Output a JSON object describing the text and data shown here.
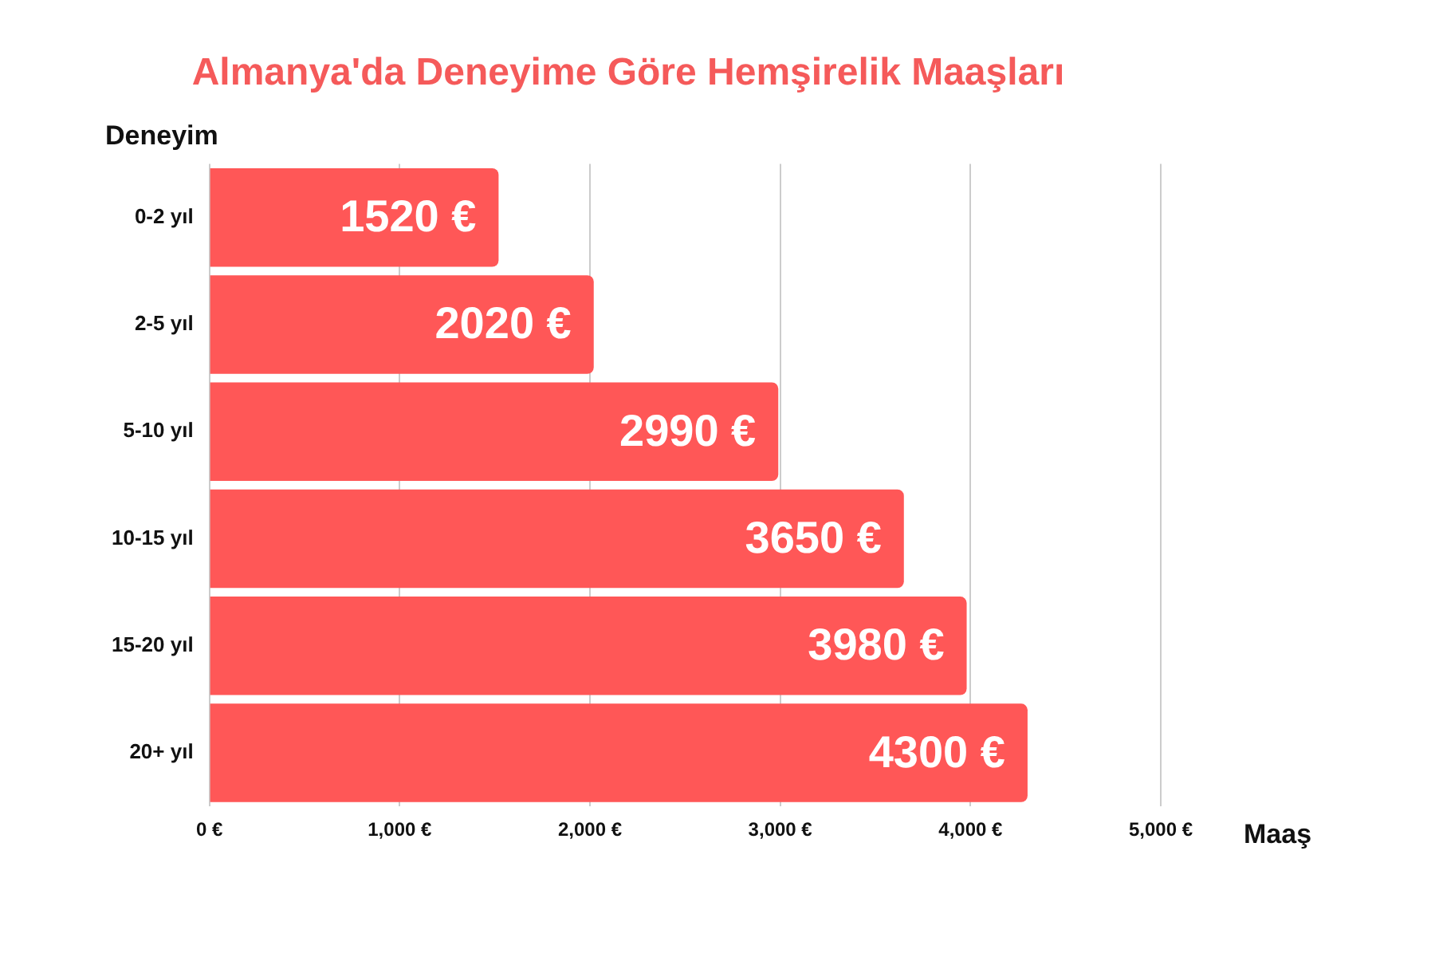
{
  "chart_data": {
    "type": "bar",
    "orientation": "horizontal",
    "title": "Almanya'da Deneyime Göre Hemşirelik Maaşları",
    "xlabel": "Maaş",
    "ylabel": "Deneyim",
    "categories": [
      "0-2 yıl",
      "2-5 yıl",
      "5-10 yıl",
      "10-15 yıl",
      "15-20 yıl",
      "20+ yıl"
    ],
    "values": [
      1520,
      2020,
      2990,
      3650,
      3980,
      4300
    ],
    "value_labels": [
      "1520 €",
      "2020 €",
      "2990 €",
      "3650 €",
      "3980 €",
      "4300 €"
    ],
    "color": "#ff5757",
    "xlim": [
      0,
      5000
    ],
    "xticks": [
      {
        "value": 0,
        "label": "0 €"
      },
      {
        "value": 1000,
        "label": "1,000 €"
      },
      {
        "value": 2000,
        "label": "2,000 €"
      },
      {
        "value": 3000,
        "label": "3,000 €"
      },
      {
        "value": 4000,
        "label": "4,000 €"
      },
      {
        "value": 5000,
        "label": "5,000 €"
      }
    ],
    "grid": "x",
    "legend": false
  }
}
